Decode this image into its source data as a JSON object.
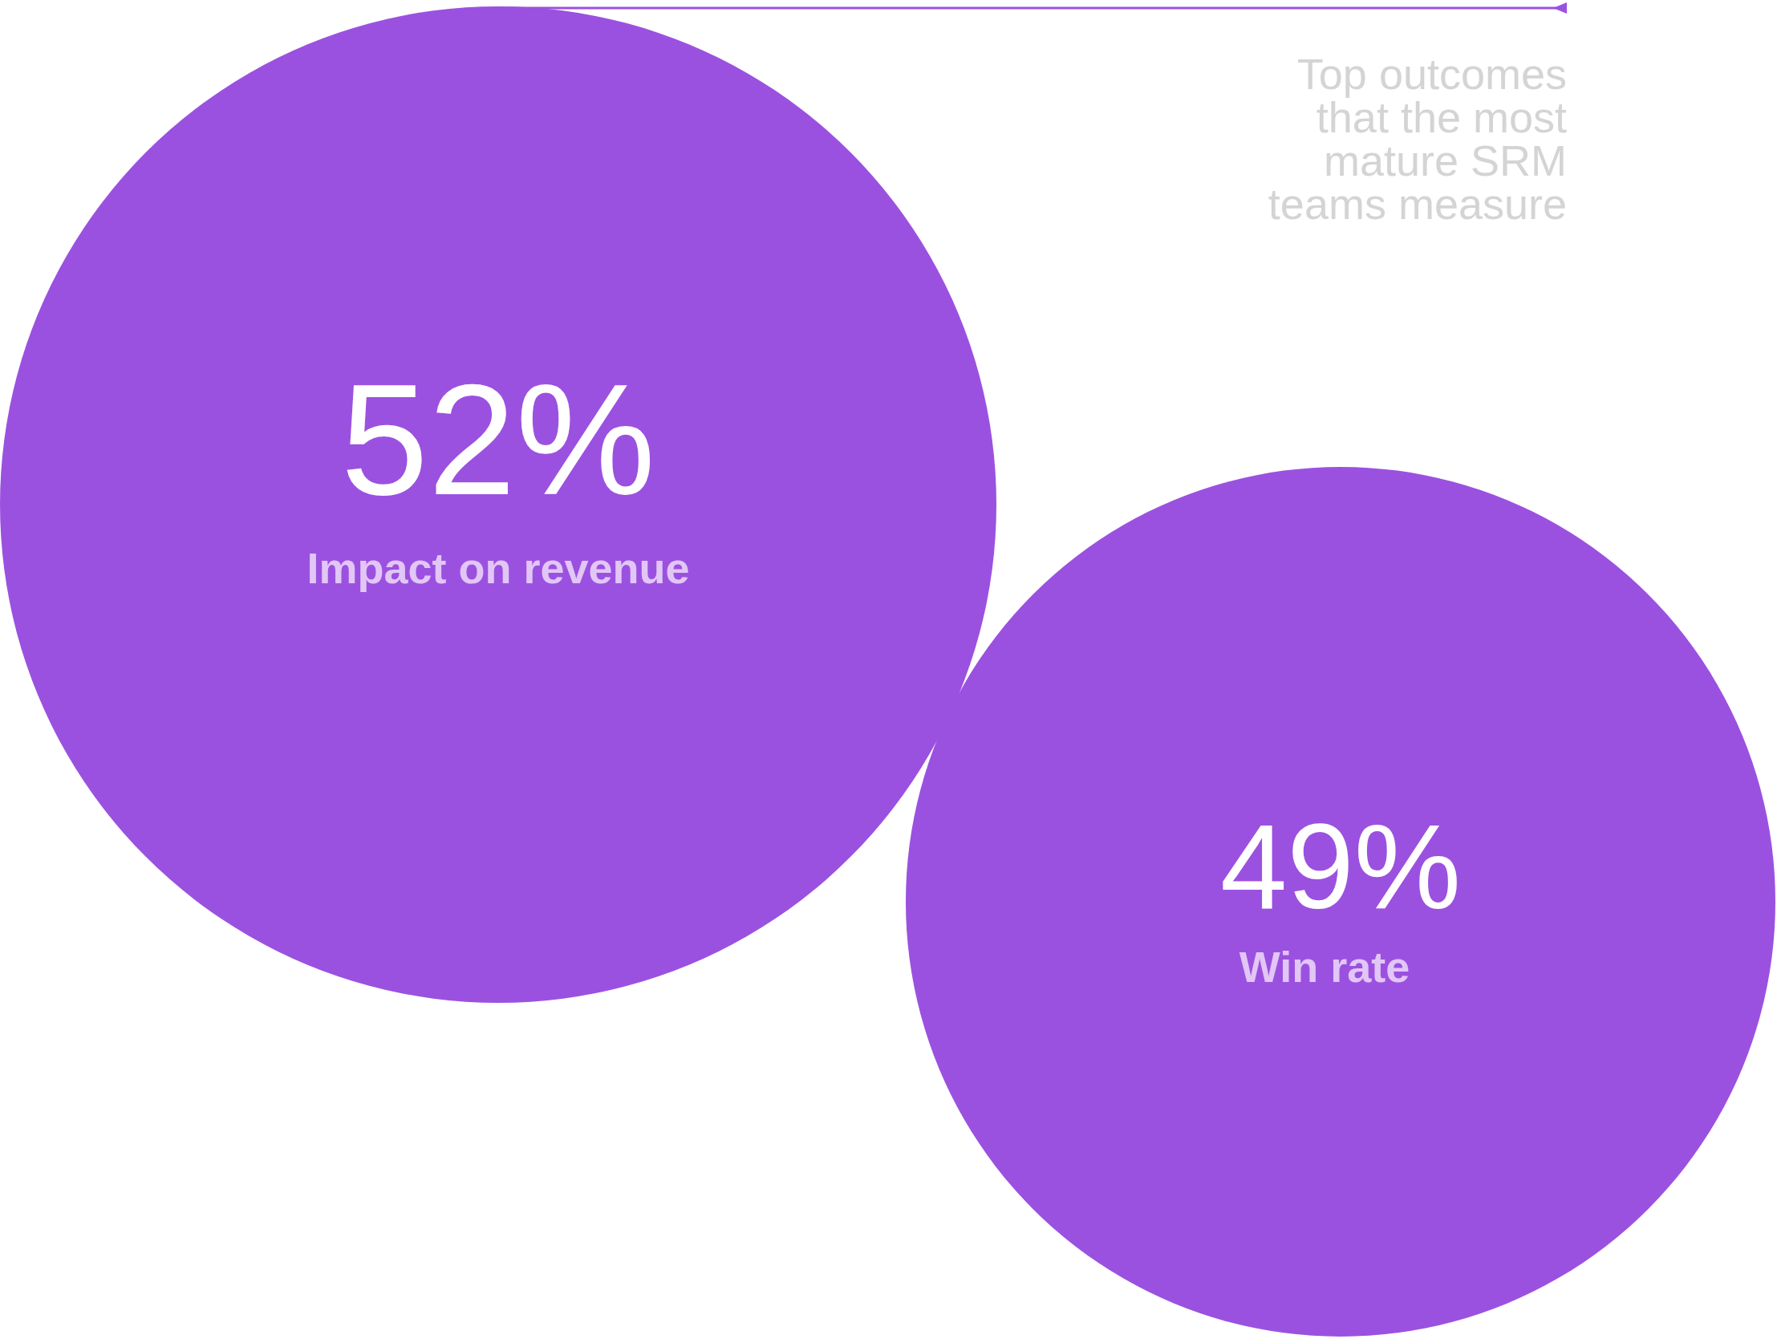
{
  "chart_data": {
    "type": "other",
    "title": "Top outcomes that the most mature SRM teams measure",
    "categories": [
      "Impact on revenue",
      "Win rate"
    ],
    "values": [
      52,
      49
    ],
    "value_labels": [
      "52%",
      "49%"
    ],
    "colors": [
      "#9b51e0",
      "#9b51e0"
    ]
  }
}
